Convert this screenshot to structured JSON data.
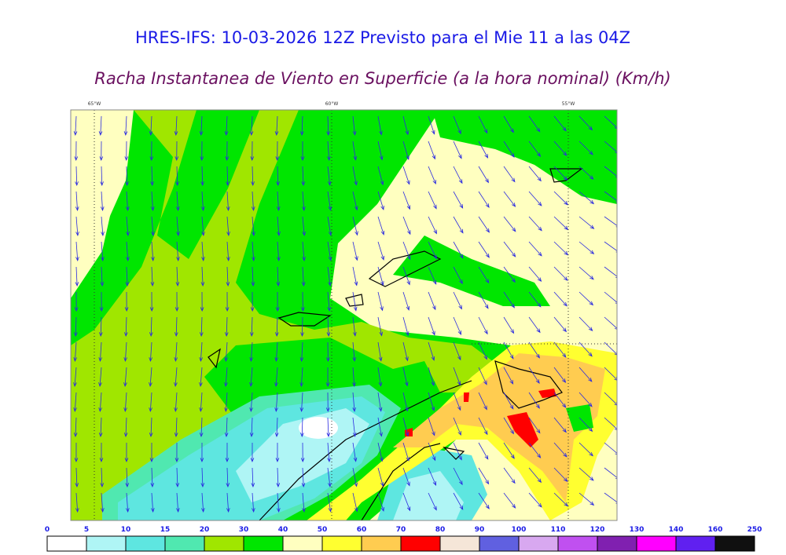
{
  "header": {
    "title": "HRES-IFS: 10-03-2026 12Z Previsto para el Mie 11 a las 04Z",
    "subtitle": "Racha Instantanea de Viento en Superficie (a la hora nominal) (Km/h)"
  },
  "map": {
    "longitudes": [
      "65°W",
      "60°W",
      "55°W"
    ]
  },
  "colorbar": {
    "labels": [
      0,
      5,
      10,
      15,
      20,
      30,
      40,
      50,
      60,
      70,
      80,
      90,
      100,
      110,
      120,
      130,
      140,
      160,
      250
    ],
    "colors": [
      "#ffffff",
      "#aff5f5",
      "#5ee6e0",
      "#50e8b0",
      "#a0e600",
      "#00e600",
      "#ffffc0",
      "#ffff30",
      "#ffcc50",
      "#ff0000",
      "#f5e6d8",
      "#6060e0",
      "#d8a8f0",
      "#c050f0",
      "#8020b0",
      "#ff00ff",
      "#6020f0",
      "#101010"
    ]
  }
}
